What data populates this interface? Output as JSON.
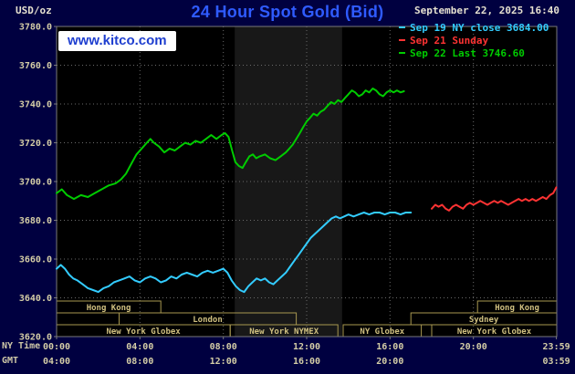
{
  "header": {
    "units_label": "USD/oz",
    "title": "24 Hour Spot Gold (Bid)",
    "datetime": "September 22, 2025 16:40",
    "watermark": "www.kitco.com"
  },
  "legend": [
    {
      "label": "Sep 19 NY close 3684.00",
      "color": "#33ccff"
    },
    {
      "label": "Sep 21 Sunday",
      "color": "#ff3333"
    },
    {
      "label": "Sep 22 Last 3746.60",
      "color": "#00cc00"
    }
  ],
  "axes": {
    "ny_label": "NY Time",
    "gmt_label": "GMT",
    "y_ticks": [
      {
        "value": 3780,
        "label": "3780.0"
      },
      {
        "value": 3760,
        "label": "3760.0"
      },
      {
        "value": 3740,
        "label": "3740.0"
      },
      {
        "value": 3720,
        "label": "3720.0"
      },
      {
        "value": 3700,
        "label": "3700.0"
      },
      {
        "value": 3680,
        "label": "3680.0"
      },
      {
        "value": 3660,
        "label": "3660.0"
      },
      {
        "value": 3640,
        "label": "3640.0"
      },
      {
        "value": 3620,
        "label": "3620.0"
      }
    ],
    "x_ticks_ny": [
      {
        "hour": 0,
        "label": "00:00"
      },
      {
        "hour": 4,
        "label": "04:00"
      },
      {
        "hour": 8,
        "label": "08:00"
      },
      {
        "hour": 12,
        "label": "12:00"
      },
      {
        "hour": 16,
        "label": "16:00"
      },
      {
        "hour": 20,
        "label": "20:00"
      },
      {
        "hour": 23.983,
        "label": "23:59"
      }
    ],
    "x_ticks_gmt": [
      {
        "hour": 0,
        "label": "04:00"
      },
      {
        "hour": 4,
        "label": "08:00"
      },
      {
        "hour": 8,
        "label": "12:00"
      },
      {
        "hour": 12,
        "label": "16:00"
      },
      {
        "hour": 16,
        "label": "20:00"
      },
      {
        "hour": 23.983,
        "label": "03:59"
      }
    ]
  },
  "sessions": [
    {
      "row": 0,
      "start": 0,
      "end": 5,
      "label": "Hong Kong"
    },
    {
      "row": 0,
      "start": 20.2,
      "end": 24,
      "label": "Hong Kong"
    },
    {
      "row": 1,
      "start": 3,
      "end": 11.5,
      "label": "London"
    },
    {
      "row": 1,
      "start": 17,
      "end": 24,
      "label": "Sydney"
    },
    {
      "row": 2,
      "start": 0,
      "end": 8.33,
      "label": "New York Globex"
    },
    {
      "row": 2,
      "start": 8.33,
      "end": 13.5,
      "label": "New York NYMEX"
    },
    {
      "row": 2,
      "start": 13.75,
      "end": 17.5,
      "label": "NY Globex"
    },
    {
      "row": 2,
      "start": 18,
      "end": 24,
      "label": "New York Globex"
    }
  ],
  "chart_data": {
    "type": "line",
    "title": "24 Hour Spot Gold (Bid)",
    "ylabel": "USD/oz",
    "xlabel": "NY Time (hours)",
    "xlim": [
      0,
      24
    ],
    "ylim": [
      3620,
      3780
    ],
    "y_grid_step": 20,
    "x_grid_hours": [
      4,
      8,
      12,
      16,
      20
    ],
    "nymex_band_hours": [
      8.55,
      13.7
    ],
    "grid": true,
    "legend_position": "top-right",
    "colors": {
      "plot_bg": "#000000",
      "band": "#181818",
      "grid": "#6a6a6a",
      "border": "#7a7a7a",
      "session_border": "#a89850",
      "session_text": "#d0c080",
      "tick_text": "#d4cda6"
    },
    "series": [
      {
        "id": "sep-19",
        "name": "Sep 19 NY close 3684.00",
        "color": "#33ccff",
        "points": [
          [
            0,
            3655
          ],
          [
            0.2,
            3657
          ],
          [
            0.4,
            3655
          ],
          [
            0.6,
            3652
          ],
          [
            0.8,
            3650
          ],
          [
            1,
            3649
          ],
          [
            1.25,
            3647
          ],
          [
            1.5,
            3645
          ],
          [
            1.75,
            3644
          ],
          [
            2,
            3643
          ],
          [
            2.25,
            3645
          ],
          [
            2.5,
            3646
          ],
          [
            2.75,
            3648
          ],
          [
            3,
            3649
          ],
          [
            3.25,
            3650
          ],
          [
            3.5,
            3651
          ],
          [
            3.75,
            3649
          ],
          [
            4,
            3648
          ],
          [
            4.25,
            3650
          ],
          [
            4.5,
            3651
          ],
          [
            4.75,
            3650
          ],
          [
            5,
            3648
          ],
          [
            5.25,
            3649
          ],
          [
            5.5,
            3651
          ],
          [
            5.75,
            3650
          ],
          [
            6,
            3652
          ],
          [
            6.25,
            3653
          ],
          [
            6.5,
            3652
          ],
          [
            6.75,
            3651
          ],
          [
            7,
            3653
          ],
          [
            7.25,
            3654
          ],
          [
            7.5,
            3653
          ],
          [
            7.75,
            3654
          ],
          [
            8,
            3655
          ],
          [
            8.2,
            3653
          ],
          [
            8.4,
            3649
          ],
          [
            8.6,
            3646
          ],
          [
            8.8,
            3644
          ],
          [
            9,
            3643
          ],
          [
            9.2,
            3646
          ],
          [
            9.4,
            3648
          ],
          [
            9.6,
            3650
          ],
          [
            9.8,
            3649
          ],
          [
            10,
            3650
          ],
          [
            10.2,
            3648
          ],
          [
            10.4,
            3647
          ],
          [
            10.6,
            3649
          ],
          [
            10.8,
            3651
          ],
          [
            11,
            3653
          ],
          [
            11.2,
            3656
          ],
          [
            11.4,
            3659
          ],
          [
            11.6,
            3662
          ],
          [
            11.8,
            3665
          ],
          [
            12,
            3668
          ],
          [
            12.2,
            3671
          ],
          [
            12.4,
            3673
          ],
          [
            12.6,
            3675
          ],
          [
            12.8,
            3677
          ],
          [
            13,
            3679
          ],
          [
            13.2,
            3681
          ],
          [
            13.4,
            3682
          ],
          [
            13.6,
            3681
          ],
          [
            13.8,
            3682
          ],
          [
            14,
            3683
          ],
          [
            14.25,
            3682
          ],
          [
            14.5,
            3683
          ],
          [
            14.75,
            3684
          ],
          [
            15,
            3683
          ],
          [
            15.25,
            3684
          ],
          [
            15.5,
            3684
          ],
          [
            15.75,
            3683
          ],
          [
            16,
            3684
          ],
          [
            16.25,
            3684
          ],
          [
            16.5,
            3683
          ],
          [
            16.75,
            3684
          ],
          [
            17,
            3684
          ]
        ]
      },
      {
        "id": "sep-21",
        "name": "Sep 21 Sunday",
        "color": "#ff3333",
        "points": [
          [
            18,
            3686
          ],
          [
            18.17,
            3688
          ],
          [
            18.33,
            3687
          ],
          [
            18.5,
            3688
          ],
          [
            18.67,
            3686
          ],
          [
            18.83,
            3685
          ],
          [
            19,
            3687
          ],
          [
            19.17,
            3688
          ],
          [
            19.33,
            3687
          ],
          [
            19.5,
            3686
          ],
          [
            19.67,
            3688
          ],
          [
            19.83,
            3689
          ],
          [
            20,
            3688
          ],
          [
            20.17,
            3689
          ],
          [
            20.33,
            3690
          ],
          [
            20.5,
            3689
          ],
          [
            20.67,
            3688
          ],
          [
            20.83,
            3689
          ],
          [
            21,
            3690
          ],
          [
            21.17,
            3689
          ],
          [
            21.33,
            3690
          ],
          [
            21.5,
            3689
          ],
          [
            21.67,
            3688
          ],
          [
            21.83,
            3689
          ],
          [
            22,
            3690
          ],
          [
            22.17,
            3691
          ],
          [
            22.33,
            3690
          ],
          [
            22.5,
            3691
          ],
          [
            22.67,
            3690
          ],
          [
            22.83,
            3691
          ],
          [
            23,
            3690
          ],
          [
            23.17,
            3691
          ],
          [
            23.33,
            3692
          ],
          [
            23.5,
            3691
          ],
          [
            23.67,
            3693
          ],
          [
            23.83,
            3694
          ],
          [
            23.98,
            3697
          ]
        ]
      },
      {
        "id": "sep-22",
        "name": "Sep 22 Last 3746.60",
        "color": "#00cc00",
        "points": [
          [
            0,
            3694
          ],
          [
            0.25,
            3696
          ],
          [
            0.5,
            3693
          ],
          [
            0.83,
            3691
          ],
          [
            1.17,
            3693
          ],
          [
            1.5,
            3692
          ],
          [
            1.83,
            3694
          ],
          [
            2.17,
            3696
          ],
          [
            2.5,
            3698
          ],
          [
            2.83,
            3699
          ],
          [
            3.08,
            3701
          ],
          [
            3.33,
            3704
          ],
          [
            3.58,
            3709
          ],
          [
            3.83,
            3714
          ],
          [
            4.08,
            3717
          ],
          [
            4.33,
            3720
          ],
          [
            4.5,
            3722
          ],
          [
            4.67,
            3720
          ],
          [
            4.92,
            3718
          ],
          [
            5.17,
            3715
          ],
          [
            5.42,
            3717
          ],
          [
            5.67,
            3716
          ],
          [
            5.92,
            3718
          ],
          [
            6.17,
            3720
          ],
          [
            6.42,
            3719
          ],
          [
            6.67,
            3721
          ],
          [
            6.92,
            3720
          ],
          [
            7.17,
            3722
          ],
          [
            7.42,
            3724
          ],
          [
            7.67,
            3722
          ],
          [
            7.92,
            3724
          ],
          [
            8.08,
            3725
          ],
          [
            8.25,
            3723
          ],
          [
            8.42,
            3716
          ],
          [
            8.58,
            3710
          ],
          [
            8.75,
            3708
          ],
          [
            8.92,
            3707
          ],
          [
            9.08,
            3710
          ],
          [
            9.25,
            3713
          ],
          [
            9.42,
            3714
          ],
          [
            9.58,
            3712
          ],
          [
            9.75,
            3713
          ],
          [
            10,
            3714
          ],
          [
            10.25,
            3712
          ],
          [
            10.5,
            3711
          ],
          [
            10.75,
            3713
          ],
          [
            11,
            3715
          ],
          [
            11.17,
            3717
          ],
          [
            11.33,
            3719
          ],
          [
            11.5,
            3722
          ],
          [
            11.67,
            3725
          ],
          [
            11.83,
            3728
          ],
          [
            12,
            3731
          ],
          [
            12.17,
            3733
          ],
          [
            12.33,
            3735
          ],
          [
            12.5,
            3734
          ],
          [
            12.67,
            3736
          ],
          [
            12.83,
            3737
          ],
          [
            13,
            3739
          ],
          [
            13.17,
            3741
          ],
          [
            13.33,
            3740
          ],
          [
            13.5,
            3742
          ],
          [
            13.67,
            3741
          ],
          [
            13.83,
            3743
          ],
          [
            14,
            3745
          ],
          [
            14.17,
            3747
          ],
          [
            14.33,
            3746
          ],
          [
            14.5,
            3744
          ],
          [
            14.67,
            3745
          ],
          [
            14.83,
            3747
          ],
          [
            15,
            3746
          ],
          [
            15.17,
            3748
          ],
          [
            15.33,
            3747
          ],
          [
            15.5,
            3745
          ],
          [
            15.67,
            3744
          ],
          [
            15.83,
            3746
          ],
          [
            16,
            3747
          ],
          [
            16.17,
            3746
          ],
          [
            16.33,
            3747
          ],
          [
            16.5,
            3746
          ],
          [
            16.67,
            3746.6
          ]
        ]
      }
    ]
  }
}
